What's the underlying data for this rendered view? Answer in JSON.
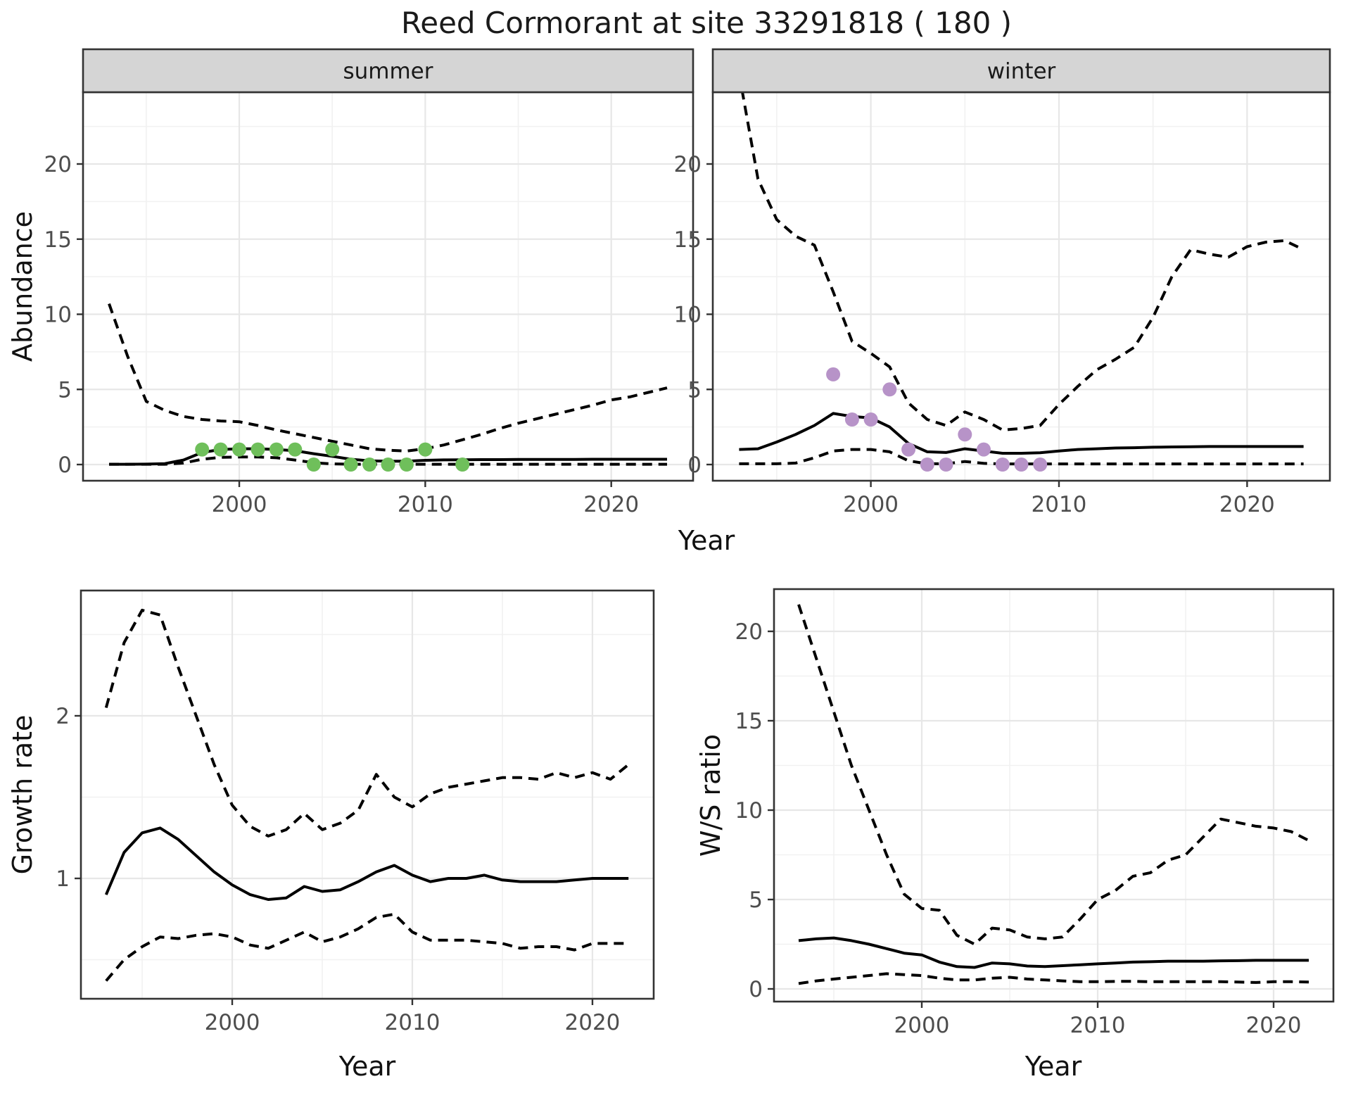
{
  "title": "Reed Cormorant at site 33291818 ( 180 )",
  "colors": {
    "summer_point_green": "#6FBF5B",
    "winter_point_purple": "#B793C8",
    "line_black": "#000000",
    "strip_fill": "#D5D5D5",
    "panel_border": "#333333",
    "grid_major": "#E7E7E7",
    "grid_minor": "#F1F1F1",
    "tick_label": "#4D4D4D"
  },
  "axis_titles": {
    "abundance": "Abundance",
    "year_top": "Year",
    "growth_rate": "Growth rate",
    "ws_ratio": "W/S ratio",
    "year_bottom_left": "Year",
    "year_bottom_right": "Year"
  },
  "chart_data": [
    {
      "id": "abundance-summer",
      "type": "line",
      "facet_label": "summer",
      "xlabel": "Year",
      "ylabel": "Abundance",
      "xlim": [
        1991.6,
        2024.4
      ],
      "x_ticks": [
        2000,
        2010,
        2020
      ],
      "x_minor": [
        1995,
        2005,
        2015
      ],
      "y_ticks": [
        0,
        5,
        10,
        15,
        20
      ],
      "y_minor": [
        2.5,
        7.5,
        12.5,
        17.5,
        22.5
      ],
      "years": [
        1993,
        1994,
        1995,
        1996,
        1997,
        1998,
        1999,
        2000,
        2001,
        2002,
        2003,
        2004,
        2005,
        2006,
        2007,
        2008,
        2009,
        2010,
        2011,
        2012,
        2013,
        2014,
        2015,
        2016,
        2017,
        2018,
        2019,
        2020,
        2021,
        2022,
        2023
      ],
      "series": [
        {
          "name": "fit",
          "style": "solid",
          "values": [
            0.02,
            0.02,
            0.03,
            0.06,
            0.3,
            0.8,
            1.0,
            1.05,
            1.05,
            1.0,
            0.92,
            0.72,
            0.55,
            0.35,
            0.25,
            0.22,
            0.22,
            0.28,
            0.31,
            0.32,
            0.33,
            0.33,
            0.34,
            0.34,
            0.34,
            0.34,
            0.35,
            0.35,
            0.35,
            0.35,
            0.35
          ]
        },
        {
          "name": "upper-ci",
          "style": "dashed",
          "values": [
            10.7,
            7.2,
            4.2,
            3.6,
            3.2,
            3.0,
            2.9,
            2.85,
            2.6,
            2.3,
            2.05,
            1.8,
            1.55,
            1.3,
            1.05,
            0.95,
            0.9,
            1.05,
            1.3,
            1.65,
            2.0,
            2.4,
            2.75,
            3.05,
            3.35,
            3.65,
            3.95,
            4.3,
            4.5,
            4.8,
            5.1
          ]
        },
        {
          "name": "lower-ci",
          "style": "dashed",
          "values": [
            0.02,
            0.02,
            0.02,
            0.02,
            0.1,
            0.35,
            0.48,
            0.5,
            0.5,
            0.45,
            0.3,
            0.12,
            0.04,
            0.02,
            0.02,
            0.02,
            0.02,
            0.02,
            0.02,
            0.02,
            0.02,
            0.02,
            0.02,
            0.02,
            0.02,
            0.02,
            0.02,
            0.02,
            0.02,
            0.02,
            0.02
          ]
        }
      ],
      "observations": {
        "color_key": "summer_point_green",
        "points": [
          [
            1998,
            1
          ],
          [
            1999,
            1
          ],
          [
            2000,
            1
          ],
          [
            2001,
            1
          ],
          [
            2002,
            1
          ],
          [
            2003,
            1
          ],
          [
            2004,
            0
          ],
          [
            2005,
            1
          ],
          [
            2006,
            0
          ],
          [
            2007,
            0
          ],
          [
            2008,
            0
          ],
          [
            2009,
            0
          ],
          [
            2010,
            1
          ],
          [
            2012,
            0
          ]
        ]
      }
    },
    {
      "id": "abundance-winter",
      "type": "line",
      "facet_label": "winter",
      "xlabel": "Year",
      "ylabel": "Abundance",
      "xlim": [
        1991.6,
        2024.4
      ],
      "x_ticks": [
        2000,
        2010,
        2020
      ],
      "x_minor": [
        1995,
        2005,
        2015
      ],
      "y_ticks": [
        0,
        5,
        10,
        15,
        20
      ],
      "y_minor": [
        2.5,
        7.5,
        12.5,
        17.5,
        22.5
      ],
      "years": [
        1993,
        1994,
        1995,
        1996,
        1997,
        1998,
        1999,
        2000,
        2001,
        2002,
        2003,
        2004,
        2005,
        2006,
        2007,
        2008,
        2009,
        2010,
        2011,
        2012,
        2013,
        2014,
        2015,
        2016,
        2017,
        2018,
        2019,
        2020,
        2021,
        2022,
        2023
      ],
      "series": [
        {
          "name": "fit",
          "style": "solid",
          "values": [
            1.0,
            1.05,
            1.5,
            2.0,
            2.6,
            3.4,
            3.2,
            3.1,
            2.5,
            1.4,
            0.85,
            0.8,
            1.05,
            0.9,
            0.75,
            0.75,
            0.78,
            0.9,
            1.0,
            1.05,
            1.1,
            1.12,
            1.15,
            1.17,
            1.18,
            1.2,
            1.2,
            1.2,
            1.2,
            1.2,
            1.2
          ]
        },
        {
          "name": "upper-ci",
          "style": "dashed",
          "values": [
            26,
            19,
            16.3,
            15.2,
            14.6,
            11.5,
            8.2,
            7.4,
            6.5,
            4.1,
            3.0,
            2.6,
            3.5,
            3.0,
            2.3,
            2.4,
            2.6,
            4.0,
            5.2,
            6.3,
            7.0,
            7.8,
            9.8,
            12.5,
            14.3,
            14.0,
            13.8,
            14.5,
            14.8,
            14.9,
            14.3
          ]
        },
        {
          "name": "lower-ci",
          "style": "dashed",
          "values": [
            0.05,
            0.05,
            0.05,
            0.1,
            0.45,
            0.9,
            1.0,
            1.0,
            0.85,
            0.25,
            0.05,
            0.05,
            0.2,
            0.08,
            0.04,
            0.04,
            0.04,
            0.04,
            0.04,
            0.04,
            0.04,
            0.04,
            0.04,
            0.04,
            0.04,
            0.04,
            0.04,
            0.04,
            0.04,
            0.04,
            0.04
          ]
        }
      ],
      "observations": {
        "color_key": "winter_point_purple",
        "points": [
          [
            1998,
            6
          ],
          [
            1999,
            3
          ],
          [
            2000,
            3
          ],
          [
            2001,
            5
          ],
          [
            2002,
            1
          ],
          [
            2003,
            0
          ],
          [
            2004,
            0
          ],
          [
            2005,
            2
          ],
          [
            2006,
            1
          ],
          [
            2007,
            0
          ],
          [
            2008,
            0
          ],
          [
            2009,
            0
          ]
        ]
      }
    },
    {
      "id": "growth-rate",
      "type": "line",
      "facet_label": "",
      "xlabel": "Year",
      "ylabel": "Growth rate",
      "xlim": [
        1991.6,
        2023.4
      ],
      "x_ticks": [
        2000,
        2010,
        2020
      ],
      "x_minor": [
        1995,
        2005,
        2015
      ],
      "y_ticks": [
        1,
        2
      ],
      "y_minor": [
        0.5,
        1.5,
        2.5
      ],
      "years": [
        1993,
        1994,
        1995,
        1996,
        1997,
        1998,
        1999,
        2000,
        2001,
        2002,
        2003,
        2004,
        2005,
        2006,
        2007,
        2008,
        2009,
        2010,
        2011,
        2012,
        2013,
        2014,
        2015,
        2016,
        2017,
        2018,
        2019,
        2020,
        2021,
        2022
      ],
      "series": [
        {
          "name": "fit",
          "style": "solid",
          "values": [
            0.9,
            1.16,
            1.28,
            1.31,
            1.24,
            1.14,
            1.04,
            0.96,
            0.9,
            0.87,
            0.88,
            0.95,
            0.92,
            0.93,
            0.98,
            1.04,
            1.08,
            1.02,
            0.98,
            1.0,
            1.0,
            1.02,
            0.99,
            0.98,
            0.98,
            0.98,
            0.99,
            1.0,
            1.0,
            1.0
          ]
        },
        {
          "name": "upper-ci",
          "style": "dashed",
          "values": [
            2.05,
            2.45,
            2.65,
            2.62,
            2.3,
            2.0,
            1.7,
            1.45,
            1.32,
            1.26,
            1.3,
            1.4,
            1.3,
            1.34,
            1.42,
            1.64,
            1.5,
            1.44,
            1.52,
            1.56,
            1.58,
            1.6,
            1.62,
            1.62,
            1.61,
            1.65,
            1.62,
            1.65,
            1.61,
            1.7
          ]
        },
        {
          "name": "lower-ci",
          "style": "dashed",
          "values": [
            0.37,
            0.5,
            0.58,
            0.64,
            0.63,
            0.65,
            0.66,
            0.64,
            0.59,
            0.57,
            0.62,
            0.67,
            0.61,
            0.64,
            0.69,
            0.76,
            0.78,
            0.67,
            0.62,
            0.62,
            0.62,
            0.61,
            0.6,
            0.57,
            0.58,
            0.58,
            0.56,
            0.6,
            0.6,
            0.6
          ]
        }
      ],
      "observations": {
        "color_key": "",
        "points": []
      }
    },
    {
      "id": "ws-ratio",
      "type": "line",
      "facet_label": "",
      "xlabel": "Year",
      "ylabel": "W/S ratio",
      "xlim": [
        1991.6,
        2023.4
      ],
      "x_ticks": [
        2000,
        2010,
        2020
      ],
      "x_minor": [
        1995,
        2005,
        2015
      ],
      "y_ticks": [
        0,
        5,
        10,
        15,
        20
      ],
      "y_minor": [
        2.5,
        7.5,
        12.5,
        17.5
      ],
      "years": [
        1993,
        1994,
        1995,
        1996,
        1997,
        1998,
        1999,
        2000,
        2001,
        2002,
        2003,
        2004,
        2005,
        2006,
        2007,
        2008,
        2009,
        2010,
        2011,
        2012,
        2013,
        2014,
        2015,
        2016,
        2017,
        2018,
        2019,
        2020,
        2021,
        2022
      ],
      "series": [
        {
          "name": "fit",
          "style": "solid",
          "values": [
            2.7,
            2.8,
            2.85,
            2.7,
            2.5,
            2.25,
            2.0,
            1.9,
            1.5,
            1.25,
            1.2,
            1.45,
            1.4,
            1.28,
            1.25,
            1.3,
            1.35,
            1.4,
            1.45,
            1.5,
            1.52,
            1.55,
            1.55,
            1.55,
            1.57,
            1.58,
            1.6,
            1.6,
            1.6,
            1.6
          ]
        },
        {
          "name": "upper-ci",
          "style": "dashed",
          "values": [
            21.5,
            18.5,
            15.5,
            12.5,
            10.0,
            7.5,
            5.3,
            4.5,
            4.4,
            3.0,
            2.5,
            3.4,
            3.3,
            2.9,
            2.8,
            2.9,
            3.9,
            5.0,
            5.5,
            6.3,
            6.5,
            7.2,
            7.5,
            8.5,
            9.5,
            9.3,
            9.1,
            9.0,
            8.8,
            8.3
          ]
        },
        {
          "name": "lower-ci",
          "style": "dashed",
          "values": [
            0.3,
            0.45,
            0.55,
            0.65,
            0.75,
            0.85,
            0.8,
            0.75,
            0.6,
            0.5,
            0.5,
            0.6,
            0.65,
            0.55,
            0.5,
            0.45,
            0.4,
            0.4,
            0.42,
            0.42,
            0.4,
            0.4,
            0.4,
            0.4,
            0.4,
            0.38,
            0.36,
            0.4,
            0.4,
            0.38
          ]
        }
      ],
      "observations": {
        "color_key": "",
        "points": []
      }
    }
  ]
}
